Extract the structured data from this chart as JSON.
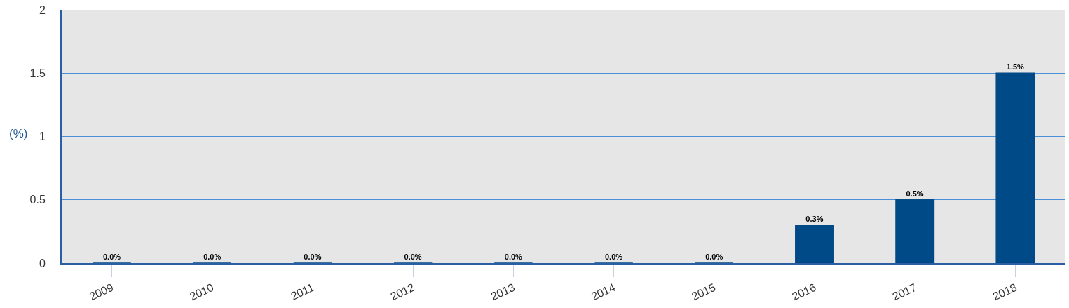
{
  "chart_data": {
    "type": "bar",
    "ylabel": "(%)",
    "categories": [
      "2009",
      "2010",
      "2011",
      "2012",
      "2013",
      "2014",
      "2015",
      "2016",
      "2017",
      "2018"
    ],
    "values": [
      0,
      0,
      0,
      0,
      0,
      0,
      0,
      0.3,
      0.5,
      1.5
    ],
    "value_labels": [
      "0.0%",
      "0.0%",
      "0.0%",
      "0.0%",
      "0.0%",
      "0.0%",
      "0.0%",
      "0.3%",
      "0.5%",
      "1.5%"
    ],
    "color": "#004a87",
    "ylim": [
      0,
      2
    ],
    "yticks": [
      0,
      0.5,
      1,
      1.5,
      2
    ],
    "grid": "y",
    "legend": false
  }
}
